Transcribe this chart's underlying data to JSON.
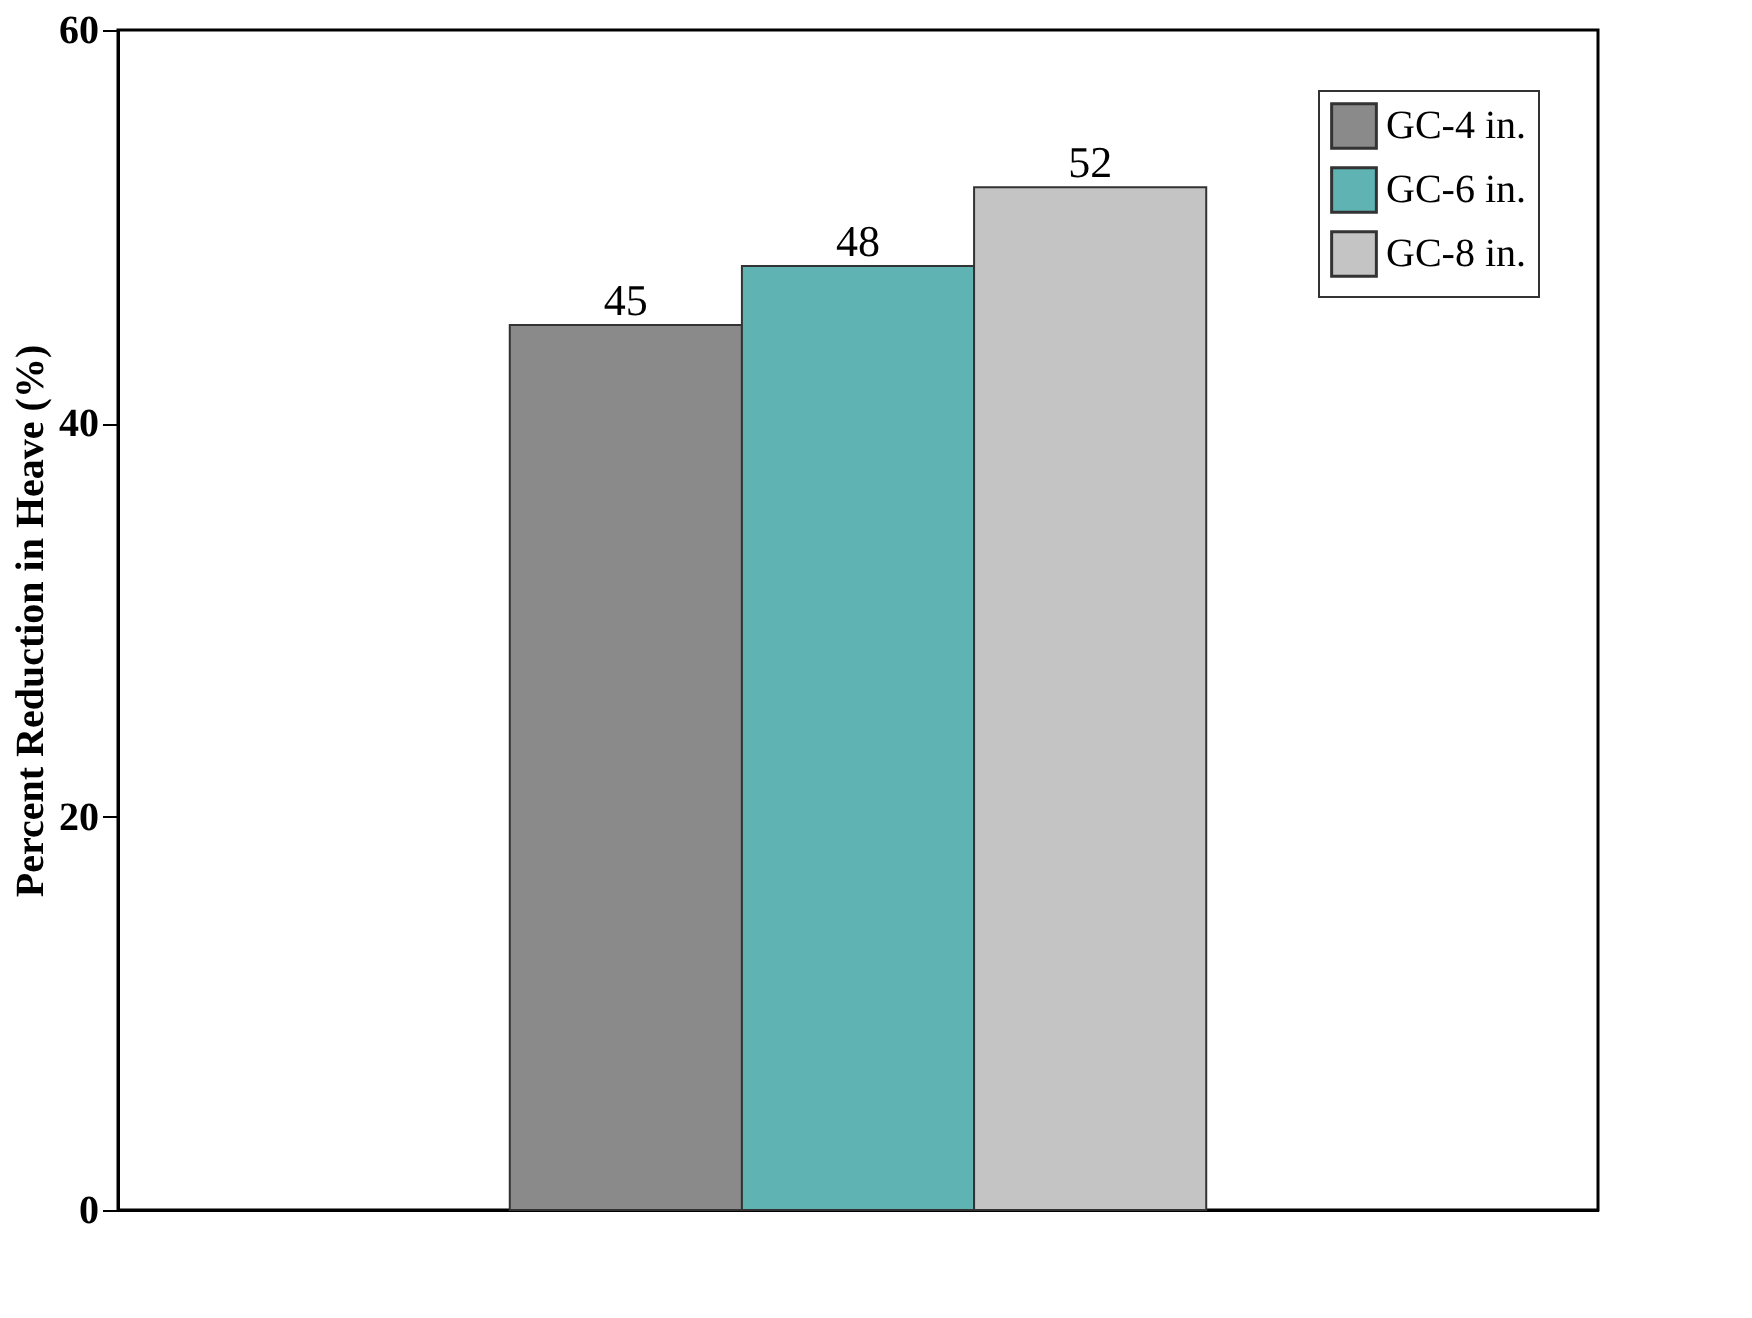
{
  "chart_data": {
    "type": "bar",
    "ylabel": "Percent Reduction in Heave (%)",
    "categories": [
      null
    ],
    "series": [
      {
        "name": "GC-4 in.",
        "color": "#8a8a8a",
        "values": [
          45
        ]
      },
      {
        "name": "GC-6 in.",
        "color": "#5fb3b3",
        "values": [
          48
        ]
      },
      {
        "name": "GC-8 in.",
        "color": "#c4c4c4",
        "values": [
          52
        ]
      }
    ],
    "ylim": [
      0,
      60
    ],
    "yticks": [
      0,
      20,
      40,
      60
    ],
    "data_labels": true,
    "legend": "top right",
    "grid": false,
    "tick_labels": "y"
  }
}
